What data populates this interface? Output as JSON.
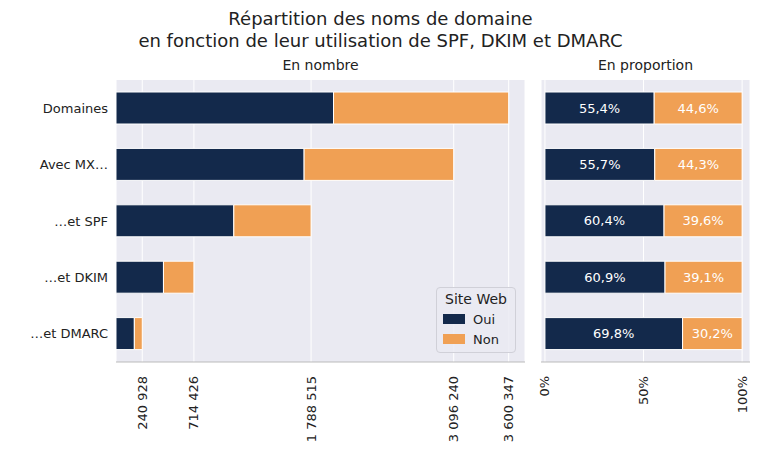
{
  "chart_data": [
    {
      "type": "bar",
      "title": "Répartition des noms de domaine\nen fonction de leur utilisation de SPF, DKIM et DMARC",
      "subtitle": "En nombre",
      "orientation": "horizontal",
      "stacked": true,
      "grid": true,
      "legend": "lower right",
      "legend_title": "Site Web",
      "categories": [
        "Domaines",
        "Avec MX…",
        "…et SPF",
        "…et DKIM",
        "…et DMARC"
      ],
      "series": [
        {
          "name": "Oui",
          "color": "#13294b",
          "values": [
            1994592,
            1724606,
            1080263,
            435085,
            168168
          ]
        },
        {
          "name": "Non",
          "color": "#f0a054",
          "values": [
            1605755,
            1371634,
            708252,
            279341,
            72760
          ]
        }
      ],
      "xlim": [
        0,
        3750000
      ],
      "xticks": [
        {
          "value": 240928,
          "label": "240 928"
        },
        {
          "value": 714426,
          "label": "714 426"
        },
        {
          "value": 1788515,
          "label": "1 788 515"
        },
        {
          "value": 3096240,
          "label": "3 096 240"
        },
        {
          "value": 3600347,
          "label": "3 600 347"
        }
      ]
    },
    {
      "type": "bar",
      "subtitle": "En proportion",
      "orientation": "horizontal",
      "stacked": true,
      "grid": true,
      "data_labels": true,
      "tick_labels": "x",
      "series": [
        {
          "name": "Oui",
          "color": "#13294b",
          "values": [
            55.4,
            55.7,
            60.4,
            60.9,
            69.8
          ],
          "value_labels": [
            "55,4%",
            "55,7%",
            "60,4%",
            "60,9%",
            "69,8%"
          ]
        },
        {
          "name": "Non",
          "color": "#f0a054",
          "values": [
            44.6,
            44.3,
            39.6,
            39.1,
            30.2
          ],
          "value_labels": [
            "44,6%",
            "44,3%",
            "39,6%",
            "39,1%",
            "30,2%"
          ]
        }
      ],
      "xlim": [
        -2,
        104
      ],
      "xticks": [
        {
          "value": 0,
          "label": "0%"
        },
        {
          "value": 50,
          "label": "50%"
        },
        {
          "value": 100,
          "label": "100%"
        }
      ]
    }
  ]
}
